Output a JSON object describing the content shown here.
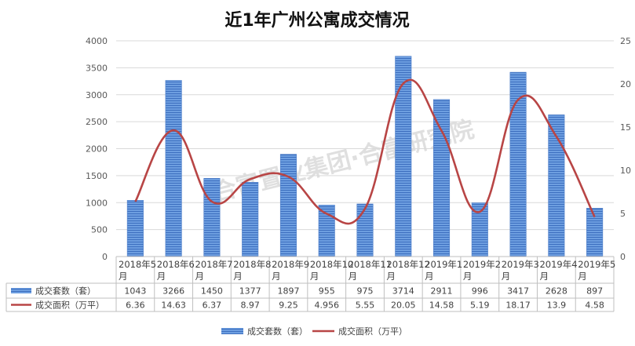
{
  "chart_data": {
    "type": "bar",
    "title": "近1年广州公寓成交情况",
    "categories": [
      [
        "2018年5",
        "月"
      ],
      [
        "2018年6",
        "月"
      ],
      [
        "2018年7",
        "月"
      ],
      [
        "2018年8",
        "月"
      ],
      [
        "2018年9",
        "月"
      ],
      [
        "2018年10",
        "月"
      ],
      [
        "2018年11",
        "月"
      ],
      [
        "2018年12",
        "月"
      ],
      [
        "2019年1",
        "月"
      ],
      [
        "2019年2",
        "月"
      ],
      [
        "2019年3",
        "月"
      ],
      [
        "2019年4",
        "月"
      ],
      [
        "2019年5",
        "月"
      ]
    ],
    "y_left": {
      "min": 0,
      "max": 4000,
      "step": 500,
      "ticks": [
        "0",
        "500",
        "1000",
        "1500",
        "2000",
        "2500",
        "3000",
        "3500",
        "4000"
      ]
    },
    "y_right": {
      "min": 0,
      "max": 25,
      "step": 5,
      "ticks": [
        "0",
        "5",
        "10",
        "15",
        "20",
        "25"
      ]
    },
    "grid": true,
    "legend_position": "bottom",
    "series": [
      {
        "name": "成交套数（套）",
        "type": "bar",
        "axis": "left",
        "color": "#5b8fd6",
        "values": [
          1043,
          3266,
          1450,
          1377,
          1897,
          955,
          975,
          3714,
          2911,
          996,
          3417,
          2628,
          897
        ],
        "labels": [
          "1043",
          "3266",
          "1450",
          "1377",
          "1897",
          "955",
          "975",
          "3714",
          "2911",
          "996",
          "3417",
          "2628",
          "897"
        ]
      },
      {
        "name": "成交面积（万平）",
        "type": "line",
        "axis": "right",
        "color": "#b84545",
        "values": [
          6.36,
          14.63,
          6.37,
          8.97,
          9.25,
          4.956,
          5.55,
          20.05,
          14.58,
          5.19,
          18.17,
          13.9,
          4.58
        ],
        "labels": [
          "6.36",
          "14.63",
          "6.37",
          "8.97",
          "9.25",
          "4.956",
          "5.55",
          "20.05",
          "14.58",
          "5.19",
          "18.17",
          "13.9",
          "4.58"
        ]
      }
    ],
    "watermark": "合富置业集团·合富研究院"
  }
}
